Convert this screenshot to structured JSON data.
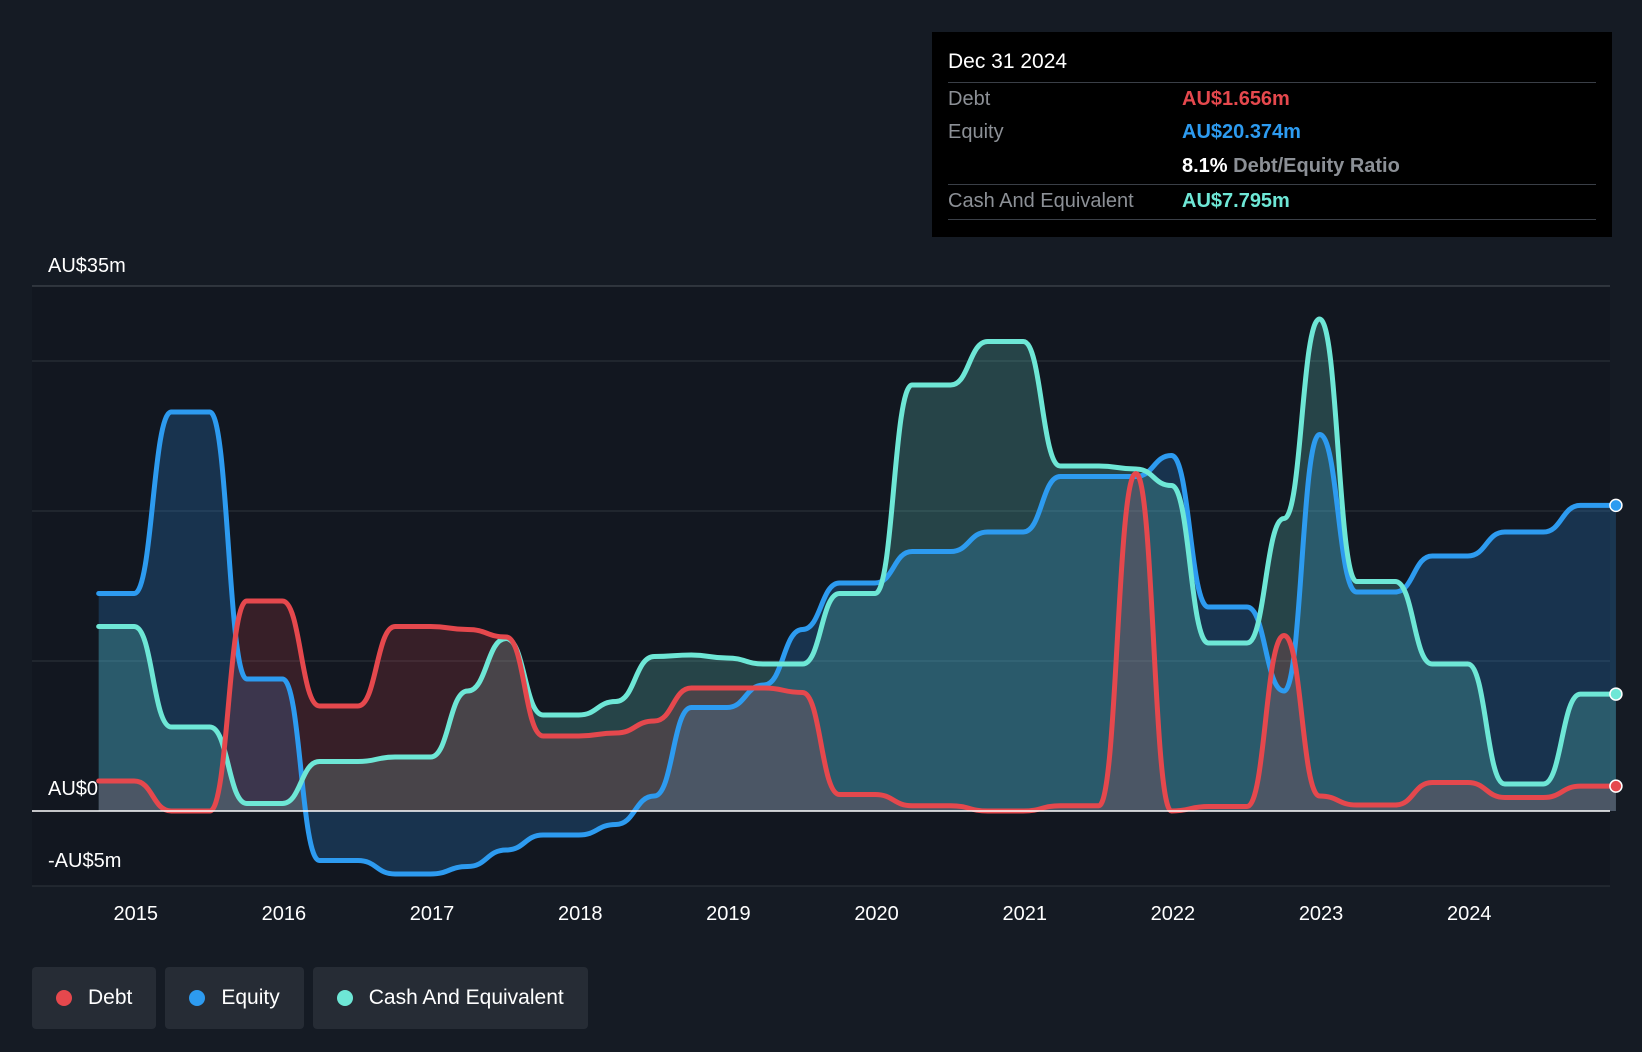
{
  "tooltip": {
    "date": "Dec 31 2024",
    "debt_label": "Debt",
    "debt_value": "AU$1.656m",
    "equity_label": "Equity",
    "equity_value": "AU$20.374m",
    "ratio_pct": "8.1%",
    "ratio_label": "Debt/Equity Ratio",
    "cash_label": "Cash And Equivalent",
    "cash_value": "AU$7.795m"
  },
  "legend": [
    {
      "label": "Debt",
      "color": "#e5484d"
    },
    {
      "label": "Equity",
      "color": "#2d9bf0"
    },
    {
      "label": "Cash And Equivalent",
      "color": "#6ee7d6"
    }
  ],
  "colors": {
    "debt": "#e5484d",
    "equity": "#2d9bf0",
    "cash": "#6ee7d6",
    "background": "#151b24",
    "plot_background": "#121720"
  },
  "chart_data": {
    "type": "area",
    "title": "",
    "xlabel": "",
    "ylabel": "",
    "ylim": [
      -5,
      35
    ],
    "y_tick_labels": [
      {
        "value": 35,
        "label": "AU$35m"
      },
      {
        "value": 0,
        "label": "AU$0"
      },
      {
        "value": -5,
        "label": "-AU$5m"
      }
    ],
    "y_gridlines": [
      35,
      30,
      20,
      10,
      0,
      -5
    ],
    "x_ticks": [
      2015,
      2016,
      2017,
      2018,
      2019,
      2020,
      2021,
      2022,
      2023,
      2024
    ],
    "xlim": [
      2014.3,
      2024.95
    ],
    "series": [
      {
        "name": "Debt",
        "color": "#e5484d",
        "x": [
          2014.75,
          2014.99,
          2015.24,
          2015.5,
          2015.75,
          2015.99,
          2016.24,
          2016.5,
          2016.75,
          2016.99,
          2017.24,
          2017.5,
          2017.75,
          2017.99,
          2018.24,
          2018.5,
          2018.75,
          2018.99,
          2019.24,
          2019.5,
          2019.75,
          2019.99,
          2020.24,
          2020.5,
          2020.75,
          2020.99,
          2021.24,
          2021.5,
          2021.75,
          2021.99,
          2022.24,
          2022.5,
          2022.75,
          2022.99,
          2023.24,
          2023.5,
          2023.75,
          2023.99,
          2024.24,
          2024.5,
          2024.75,
          2024.99
        ],
        "values": [
          2.0,
          2.0,
          0.0,
          0.0,
          14.0,
          14.0,
          7.0,
          7.0,
          12.3,
          12.3,
          12.1,
          11.6,
          5.0,
          5.0,
          5.2,
          6.0,
          8.2,
          8.2,
          8.2,
          7.9,
          1.1,
          1.1,
          0.35,
          0.35,
          0.0,
          0.0,
          0.35,
          0.35,
          22.5,
          0.0,
          0.3,
          0.3,
          11.7,
          1.0,
          0.4,
          0.4,
          1.9,
          1.9,
          0.9,
          0.9,
          1.656,
          1.656
        ]
      },
      {
        "name": "Equity",
        "color": "#2d9bf0",
        "x": [
          2014.75,
          2014.99,
          2015.24,
          2015.5,
          2015.75,
          2015.99,
          2016.24,
          2016.5,
          2016.75,
          2016.99,
          2017.24,
          2017.5,
          2017.75,
          2017.99,
          2018.24,
          2018.5,
          2018.75,
          2018.99,
          2019.24,
          2019.5,
          2019.75,
          2019.99,
          2020.24,
          2020.5,
          2020.75,
          2020.99,
          2021.24,
          2021.5,
          2021.75,
          2021.99,
          2022.24,
          2022.5,
          2022.75,
          2022.99,
          2023.24,
          2023.5,
          2023.75,
          2023.99,
          2024.24,
          2024.5,
          2024.75,
          2024.99
        ],
        "values": [
          14.5,
          14.5,
          26.6,
          26.6,
          8.8,
          8.8,
          -3.3,
          -3.3,
          -4.2,
          -4.2,
          -3.7,
          -2.6,
          -1.6,
          -1.6,
          -0.9,
          1.0,
          6.9,
          6.9,
          8.4,
          12.1,
          15.2,
          15.2,
          17.3,
          17.3,
          18.6,
          18.6,
          22.3,
          22.3,
          22.3,
          23.7,
          13.6,
          13.6,
          8.0,
          25.1,
          14.6,
          14.6,
          17.0,
          17.0,
          18.6,
          18.6,
          20.374,
          20.374
        ]
      },
      {
        "name": "Cash And Equivalent",
        "color": "#6ee7d6",
        "x": [
          2014.75,
          2014.99,
          2015.24,
          2015.5,
          2015.75,
          2015.99,
          2016.24,
          2016.5,
          2016.75,
          2016.99,
          2017.24,
          2017.5,
          2017.75,
          2017.99,
          2018.24,
          2018.5,
          2018.75,
          2018.99,
          2019.24,
          2019.5,
          2019.75,
          2019.99,
          2020.24,
          2020.5,
          2020.75,
          2020.99,
          2021.24,
          2021.5,
          2021.75,
          2021.99,
          2022.24,
          2022.5,
          2022.75,
          2022.99,
          2023.24,
          2023.5,
          2023.75,
          2023.99,
          2024.24,
          2024.5,
          2024.75,
          2024.99
        ],
        "values": [
          12.3,
          12.3,
          5.6,
          5.6,
          0.5,
          0.5,
          3.3,
          3.3,
          3.6,
          3.6,
          8.0,
          11.5,
          6.4,
          6.4,
          7.3,
          10.3,
          10.4,
          10.2,
          9.8,
          9.8,
          14.5,
          14.5,
          28.4,
          28.4,
          31.3,
          31.3,
          23.0,
          23.0,
          22.8,
          21.7,
          11.2,
          11.2,
          19.5,
          32.8,
          15.3,
          15.3,
          9.8,
          9.8,
          1.8,
          1.8,
          7.795,
          7.795
        ]
      }
    ]
  }
}
